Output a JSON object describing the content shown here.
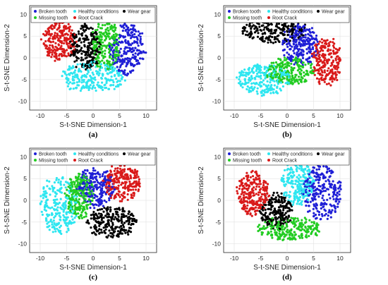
{
  "chart_data": [
    {
      "type": "scatter",
      "panel_label": "(a)",
      "xlabel": "S-t-SNE Dimension-1",
      "ylabel": "S-t-SNE Dimension-2",
      "xlim": [
        -12,
        12
      ],
      "ylim": [
        -12,
        12
      ],
      "xticks": [
        -10,
        -5,
        0,
        5,
        10
      ],
      "yticks": [
        -10,
        -5,
        0,
        5,
        10
      ],
      "grid": true,
      "legend_position": "top",
      "series": [
        {
          "name": "Broken tooth",
          "color": "#1f1fd6",
          "cluster": {
            "cx": 6.5,
            "cy": 2.0,
            "rx": 3.2,
            "ry": 6.0,
            "n": 240
          }
        },
        {
          "name": "Healthy conditions",
          "color": "#2ee6f0",
          "cluster": {
            "cx": 0.0,
            "cy": -4.5,
            "rx": 6.0,
            "ry": 3.5,
            "n": 240
          }
        },
        {
          "name": "Wear gear",
          "color": "#000000",
          "cluster": {
            "cx": -1.5,
            "cy": 2.5,
            "rx": 2.8,
            "ry": 5.0,
            "n": 220
          }
        },
        {
          "name": "Missing tooth",
          "color": "#22cc22",
          "cluster": {
            "cx": 2.5,
            "cy": 3.0,
            "rx": 2.5,
            "ry": 6.0,
            "n": 220
          }
        },
        {
          "name": "Root Crack",
          "color": "#d91a1a",
          "cluster": {
            "cx": -6.5,
            "cy": 4.0,
            "rx": 3.2,
            "ry": 4.5,
            "n": 240
          }
        }
      ]
    },
    {
      "type": "scatter",
      "panel_label": "(b)",
      "xlabel": "S-t-SNE Dimension-1",
      "ylabel": "S-t-SNE Dimension-2",
      "xlim": [
        -12,
        12
      ],
      "ylim": [
        -12,
        12
      ],
      "xticks": [
        -10,
        -5,
        0,
        5,
        10
      ],
      "yticks": [
        -10,
        -5,
        0,
        5,
        10
      ],
      "grid": true,
      "legend_position": "top",
      "series": [
        {
          "name": "Broken tooth",
          "color": "#1f1fd6",
          "cluster": {
            "cx": 2.5,
            "cy": 3.0,
            "rx": 3.5,
            "ry": 4.5,
            "n": 240
          }
        },
        {
          "name": "Healthy conditions",
          "color": "#2ee6f0",
          "cluster": {
            "cx": -4.5,
            "cy": -5.0,
            "rx": 5.0,
            "ry": 3.5,
            "n": 240
          }
        },
        {
          "name": "Wear gear",
          "color": "#000000",
          "cluster": {
            "cx": -2.5,
            "cy": 6.5,
            "rx": 6.0,
            "ry": 3.0,
            "n": 240
          }
        },
        {
          "name": "Missing tooth",
          "color": "#22cc22",
          "cluster": {
            "cx": 0.5,
            "cy": -3.0,
            "rx": 4.5,
            "ry": 3.0,
            "n": 220
          }
        },
        {
          "name": "Root Crack",
          "color": "#d91a1a",
          "cluster": {
            "cx": 7.5,
            "cy": -1.0,
            "rx": 2.8,
            "ry": 5.5,
            "n": 220
          }
        }
      ]
    },
    {
      "type": "scatter",
      "panel_label": "(c)",
      "xlabel": "S-t-SNE Dimension-1",
      "ylabel": "S-t-SNE Dimension-2",
      "xlim": [
        -12,
        12
      ],
      "ylim": [
        -12,
        12
      ],
      "xticks": [
        -10,
        -5,
        0,
        5,
        10
      ],
      "yticks": [
        -10,
        -5,
        0,
        5,
        10
      ],
      "grid": true,
      "legend_position": "top",
      "series": [
        {
          "name": "Broken tooth",
          "color": "#1f1fd6",
          "cluster": {
            "cx": 0.5,
            "cy": 3.0,
            "rx": 3.5,
            "ry": 4.5,
            "n": 230
          }
        },
        {
          "name": "Healthy conditions",
          "color": "#2ee6f0",
          "cluster": {
            "cx": -6.5,
            "cy": -1.0,
            "rx": 3.5,
            "ry": 6.5,
            "n": 240
          }
        },
        {
          "name": "Wear gear",
          "color": "#000000",
          "cluster": {
            "cx": 3.5,
            "cy": -5.0,
            "rx": 4.5,
            "ry": 3.5,
            "n": 230
          }
        },
        {
          "name": "Missing tooth",
          "color": "#22cc22",
          "cluster": {
            "cx": -2.5,
            "cy": 1.0,
            "rx": 2.5,
            "ry": 5.0,
            "n": 220
          }
        },
        {
          "name": "Root Crack",
          "color": "#d91a1a",
          "cluster": {
            "cx": 5.5,
            "cy": 4.0,
            "rx": 3.5,
            "ry": 4.0,
            "n": 230
          }
        }
      ]
    },
    {
      "type": "scatter",
      "panel_label": "(d)",
      "xlabel": "S-t-SNE Dimension-1",
      "ylabel": "S-t-SNE Dimension-2",
      "xlim": [
        -12,
        12
      ],
      "ylim": [
        -12,
        12
      ],
      "xticks": [
        -10,
        -5,
        0,
        5,
        10
      ],
      "yticks": [
        -10,
        -5,
        0,
        5,
        10
      ],
      "grid": true,
      "legend_position": "top",
      "series": [
        {
          "name": "Broken tooth",
          "color": "#1f1fd6",
          "cluster": {
            "cx": 6.5,
            "cy": 2.0,
            "rx": 3.5,
            "ry": 6.5,
            "n": 260
          }
        },
        {
          "name": "Healthy conditions",
          "color": "#2ee6f0",
          "cluster": {
            "cx": 2.0,
            "cy": 4.0,
            "rx": 3.0,
            "ry": 5.0,
            "n": 230
          }
        },
        {
          "name": "Wear gear",
          "color": "#000000",
          "cluster": {
            "cx": -2.0,
            "cy": -2.5,
            "rx": 3.0,
            "ry": 4.0,
            "n": 200
          }
        },
        {
          "name": "Missing tooth",
          "color": "#22cc22",
          "cluster": {
            "cx": 0.5,
            "cy": -6.5,
            "rx": 6.0,
            "ry": 2.5,
            "n": 230
          }
        },
        {
          "name": "Root Crack",
          "color": "#d91a1a",
          "cluster": {
            "cx": -6.5,
            "cy": 1.5,
            "rx": 3.0,
            "ry": 5.0,
            "n": 240
          }
        }
      ]
    }
  ]
}
